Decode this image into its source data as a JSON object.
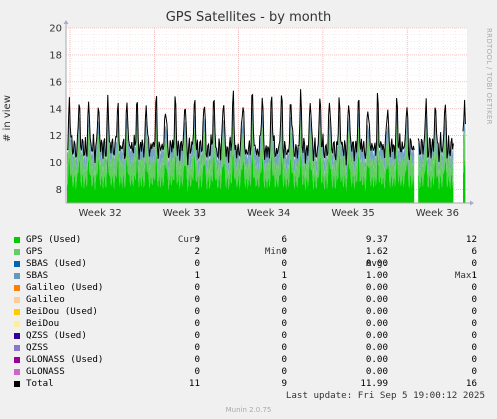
{
  "chart_data": {
    "type": "area",
    "title": "GPS Satellites - by month",
    "side_text": "RRDTOOL / TOBI OETIKER",
    "ylabel": "# in view",
    "ylim": [
      7,
      20
    ],
    "yticks": [
      8,
      10,
      12,
      14,
      16,
      18,
      20
    ],
    "xticks": [
      "Week 32",
      "Week 33",
      "Week 34",
      "Week 35",
      "Week 36"
    ],
    "grid": true,
    "series": [
      {
        "name": "GPS (Used)",
        "color": "#00cc00",
        "cur": "9",
        "min": "6",
        "avg": "9.37",
        "max": "12"
      },
      {
        "name": "GPS",
        "color": "#66cc66",
        "cur": "2",
        "min": "0",
        "avg": "1.62",
        "max": "6"
      },
      {
        "name": "SBAS (Used)",
        "color": "#0066b3",
        "cur": "0",
        "min": "0",
        "avg": "0.00",
        "max": "0"
      },
      {
        "name": "SBAS",
        "color": "#6699bb",
        "cur": "1",
        "min": "1",
        "avg": "1.00",
        "max": "1"
      },
      {
        "name": "Galileo (Used)",
        "color": "#ff8000",
        "cur": "0",
        "min": "0",
        "avg": "0.00",
        "max": "0"
      },
      {
        "name": "Galileo",
        "color": "#ffcc99",
        "cur": "0",
        "min": "0",
        "avg": "0.00",
        "max": "0"
      },
      {
        "name": "BeiDou (Used)",
        "color": "#ffcc00",
        "cur": "0",
        "min": "0",
        "avg": "0.00",
        "max": "0"
      },
      {
        "name": "BeiDou",
        "color": "#ffee99",
        "cur": "0",
        "min": "0",
        "avg": "0.00",
        "max": "0"
      },
      {
        "name": "QZSS (Used)",
        "color": "#330099",
        "cur": "0",
        "min": "0",
        "avg": "0.00",
        "max": "0"
      },
      {
        "name": "QZSS",
        "color": "#8877cc",
        "cur": "0",
        "min": "0",
        "avg": "0.00",
        "max": "0"
      },
      {
        "name": "GLONASS (Used)",
        "color": "#990099",
        "cur": "0",
        "min": "0",
        "avg": "0.00",
        "max": "0"
      },
      {
        "name": "GLONASS",
        "color": "#cc66cc",
        "cur": "0",
        "min": "0",
        "avg": "0.00",
        "max": "0"
      },
      {
        "name": "Total",
        "color": "#000000",
        "cur": "11",
        "min": "9",
        "avg": "11.99",
        "max": "16"
      }
    ]
  },
  "legend_headers": {
    "cur": "Cur:",
    "min": "Min:",
    "avg": "Avg:",
    "max": "Max:"
  },
  "last_update": "Last update: Fri Sep  5 19:00:12 2025",
  "footer": "Munin 2.0.75"
}
